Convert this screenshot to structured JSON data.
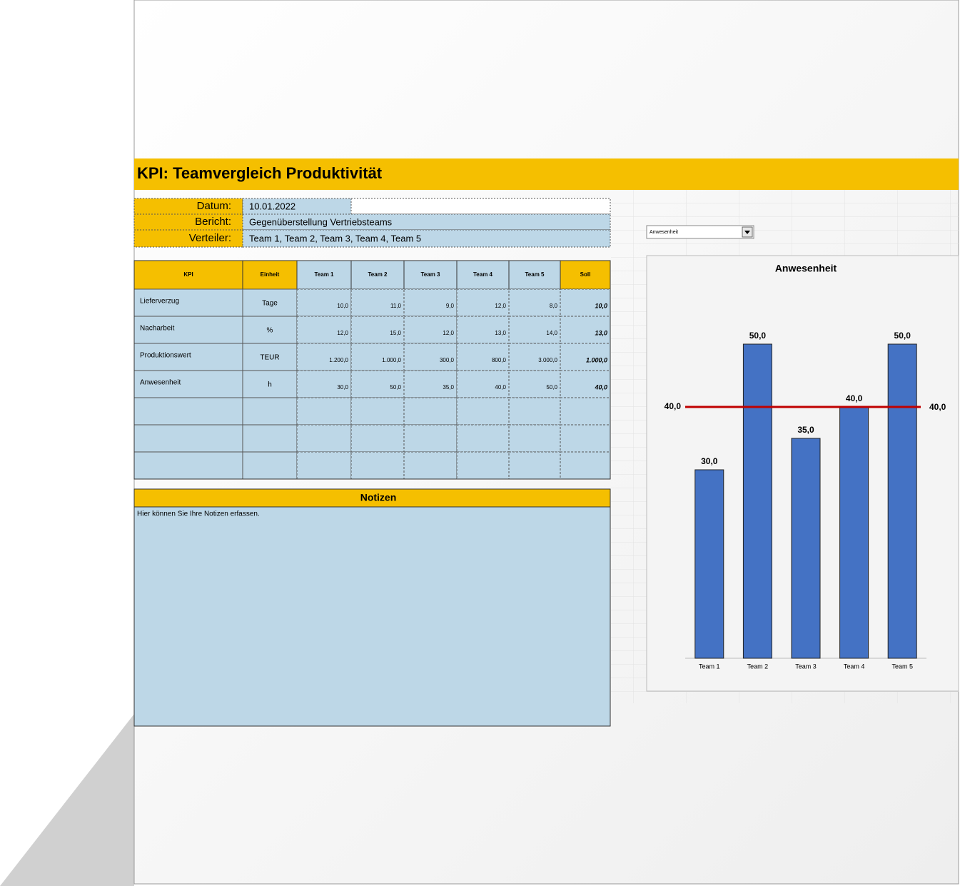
{
  "header": {
    "title": "KPI: Teamvergleich Produktivität"
  },
  "info": [
    {
      "label": "Datum:",
      "value": "10.01.2022"
    },
    {
      "label": "Bericht:",
      "value": "Gegenüberstellung Vertriebsteams"
    },
    {
      "label": "Verteiler:",
      "value": "Team 1, Team 2, Team 3, Team 4, Team 5"
    }
  ],
  "table": {
    "columns": [
      "KPI",
      "Einheit",
      "Team 1",
      "Team 2",
      "Team 3",
      "Team 4",
      "Team 5",
      "Soll"
    ],
    "rows": [
      [
        "Lieferverzug",
        "Tage",
        "10,0",
        "11,0",
        "9,0",
        "12,0",
        "8,0",
        "10,0"
      ],
      [
        "Nacharbeit",
        "%",
        "12,0",
        "15,0",
        "12,0",
        "13,0",
        "14,0",
        "13,0"
      ],
      [
        "Produktionswert",
        "TEUR",
        "1.200,0",
        "1.000,0",
        "300,0",
        "800,0",
        "3.000,0",
        "1.000,0"
      ],
      [
        "Anwesenheit",
        "h",
        "30,0",
        "50,0",
        "35,0",
        "40,0",
        "50,0",
        "40,0"
      ]
    ]
  },
  "notes": {
    "title": "Notizen",
    "text": "Hier können Sie Ihre Notizen erfassen."
  },
  "dropdown": {
    "value": "Anwesenheit"
  },
  "chart_data": {
    "type": "bar",
    "title": "Anwesenheit",
    "categories": [
      "Team 1",
      "Team 2",
      "Team 3",
      "Team 4",
      "Team 5"
    ],
    "values": [
      30,
      50,
      35,
      40,
      50
    ],
    "value_labels": [
      "30,0",
      "50,0",
      "35,0",
      "40,0",
      "50,0"
    ],
    "color": "#4472c4",
    "ylim": [
      0,
      60
    ],
    "target": {
      "value": 40,
      "label": "40,0",
      "color": "#c00000"
    }
  }
}
